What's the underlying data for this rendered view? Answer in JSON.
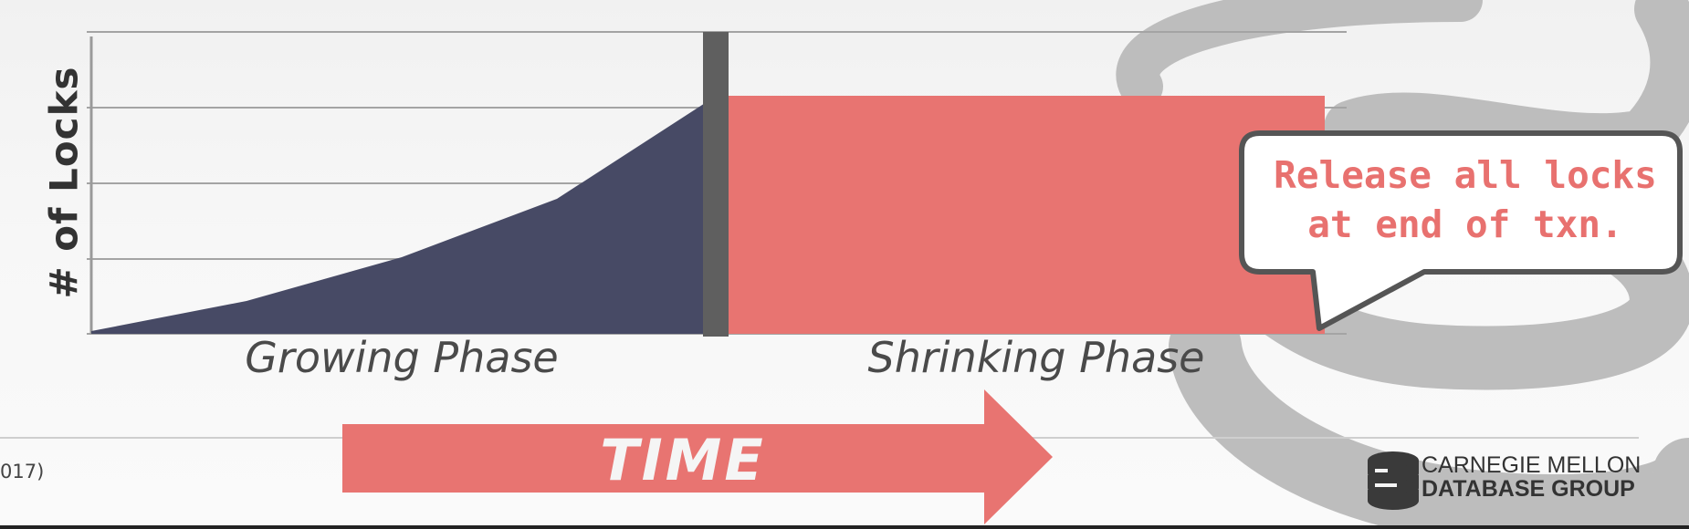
{
  "diagram": {
    "ylabel": "# of Locks",
    "growing_label": "Growing Phase",
    "shrinking_label": "Shrinking Phase",
    "callout_line1": "Release all locks",
    "callout_line2": "at end of txn.",
    "time_label": "TIME"
  },
  "footer": {
    "citation_fragment": "017)",
    "org_line1": "CARNEGIE MELLON",
    "org_line2": "DATABASE GROUP"
  },
  "colors": {
    "growing_fill": "#474a65",
    "shrinking_fill": "#e87471",
    "lock_point": "#5f5f5f",
    "callout_border": "#555555",
    "callout_text": "#e8716f",
    "time_arrow": "#e87471",
    "watermark": "#bdbdbd",
    "gridline": "#9e9e9e"
  }
}
